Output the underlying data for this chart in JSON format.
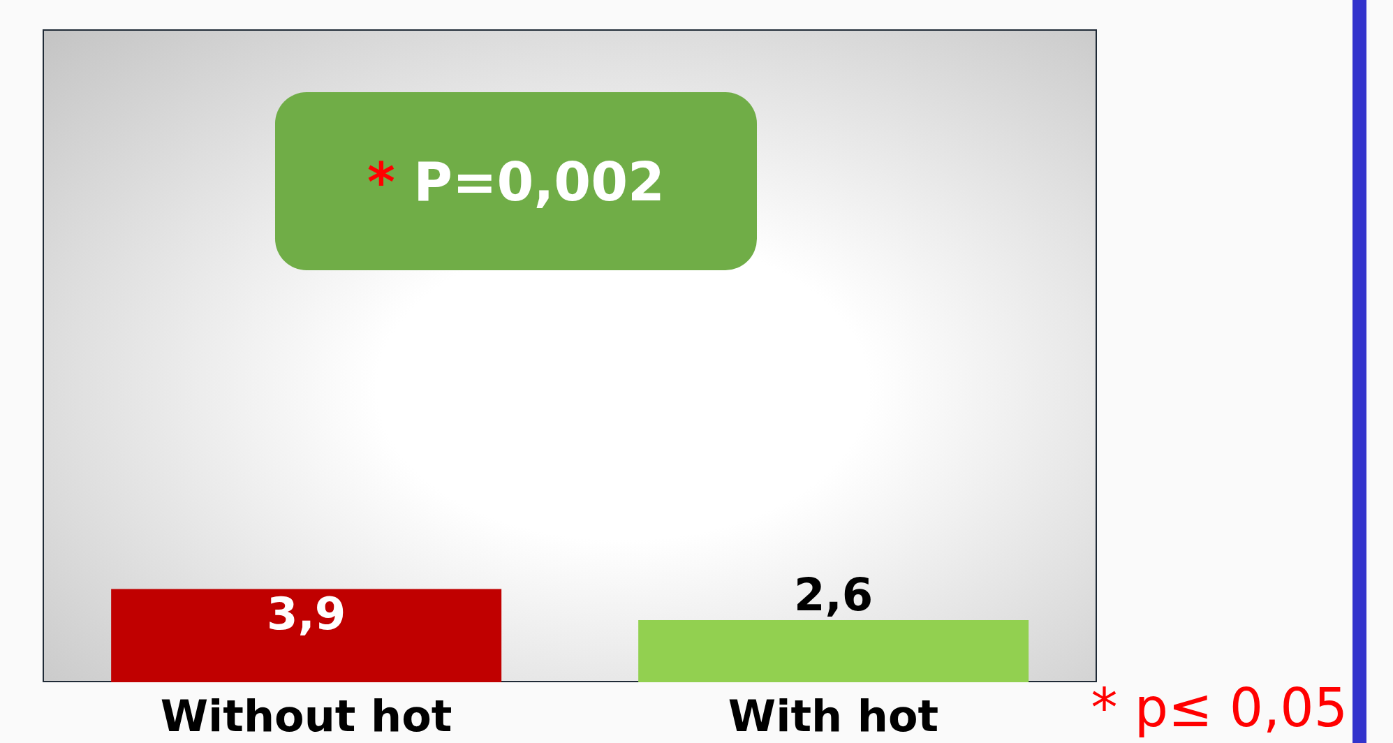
{
  "chart_data": {
    "type": "bar",
    "categories": [
      "Without hot",
      "With hot"
    ],
    "values": [
      3.9,
      2.6
    ],
    "colors": [
      "#c00000",
      "#92d050"
    ],
    "value_labels": [
      "3,9",
      "2,6"
    ],
    "tick_labels": "x",
    "annotations": [
      "* P=0,002",
      "* p≤ 0,05"
    ]
  }
}
